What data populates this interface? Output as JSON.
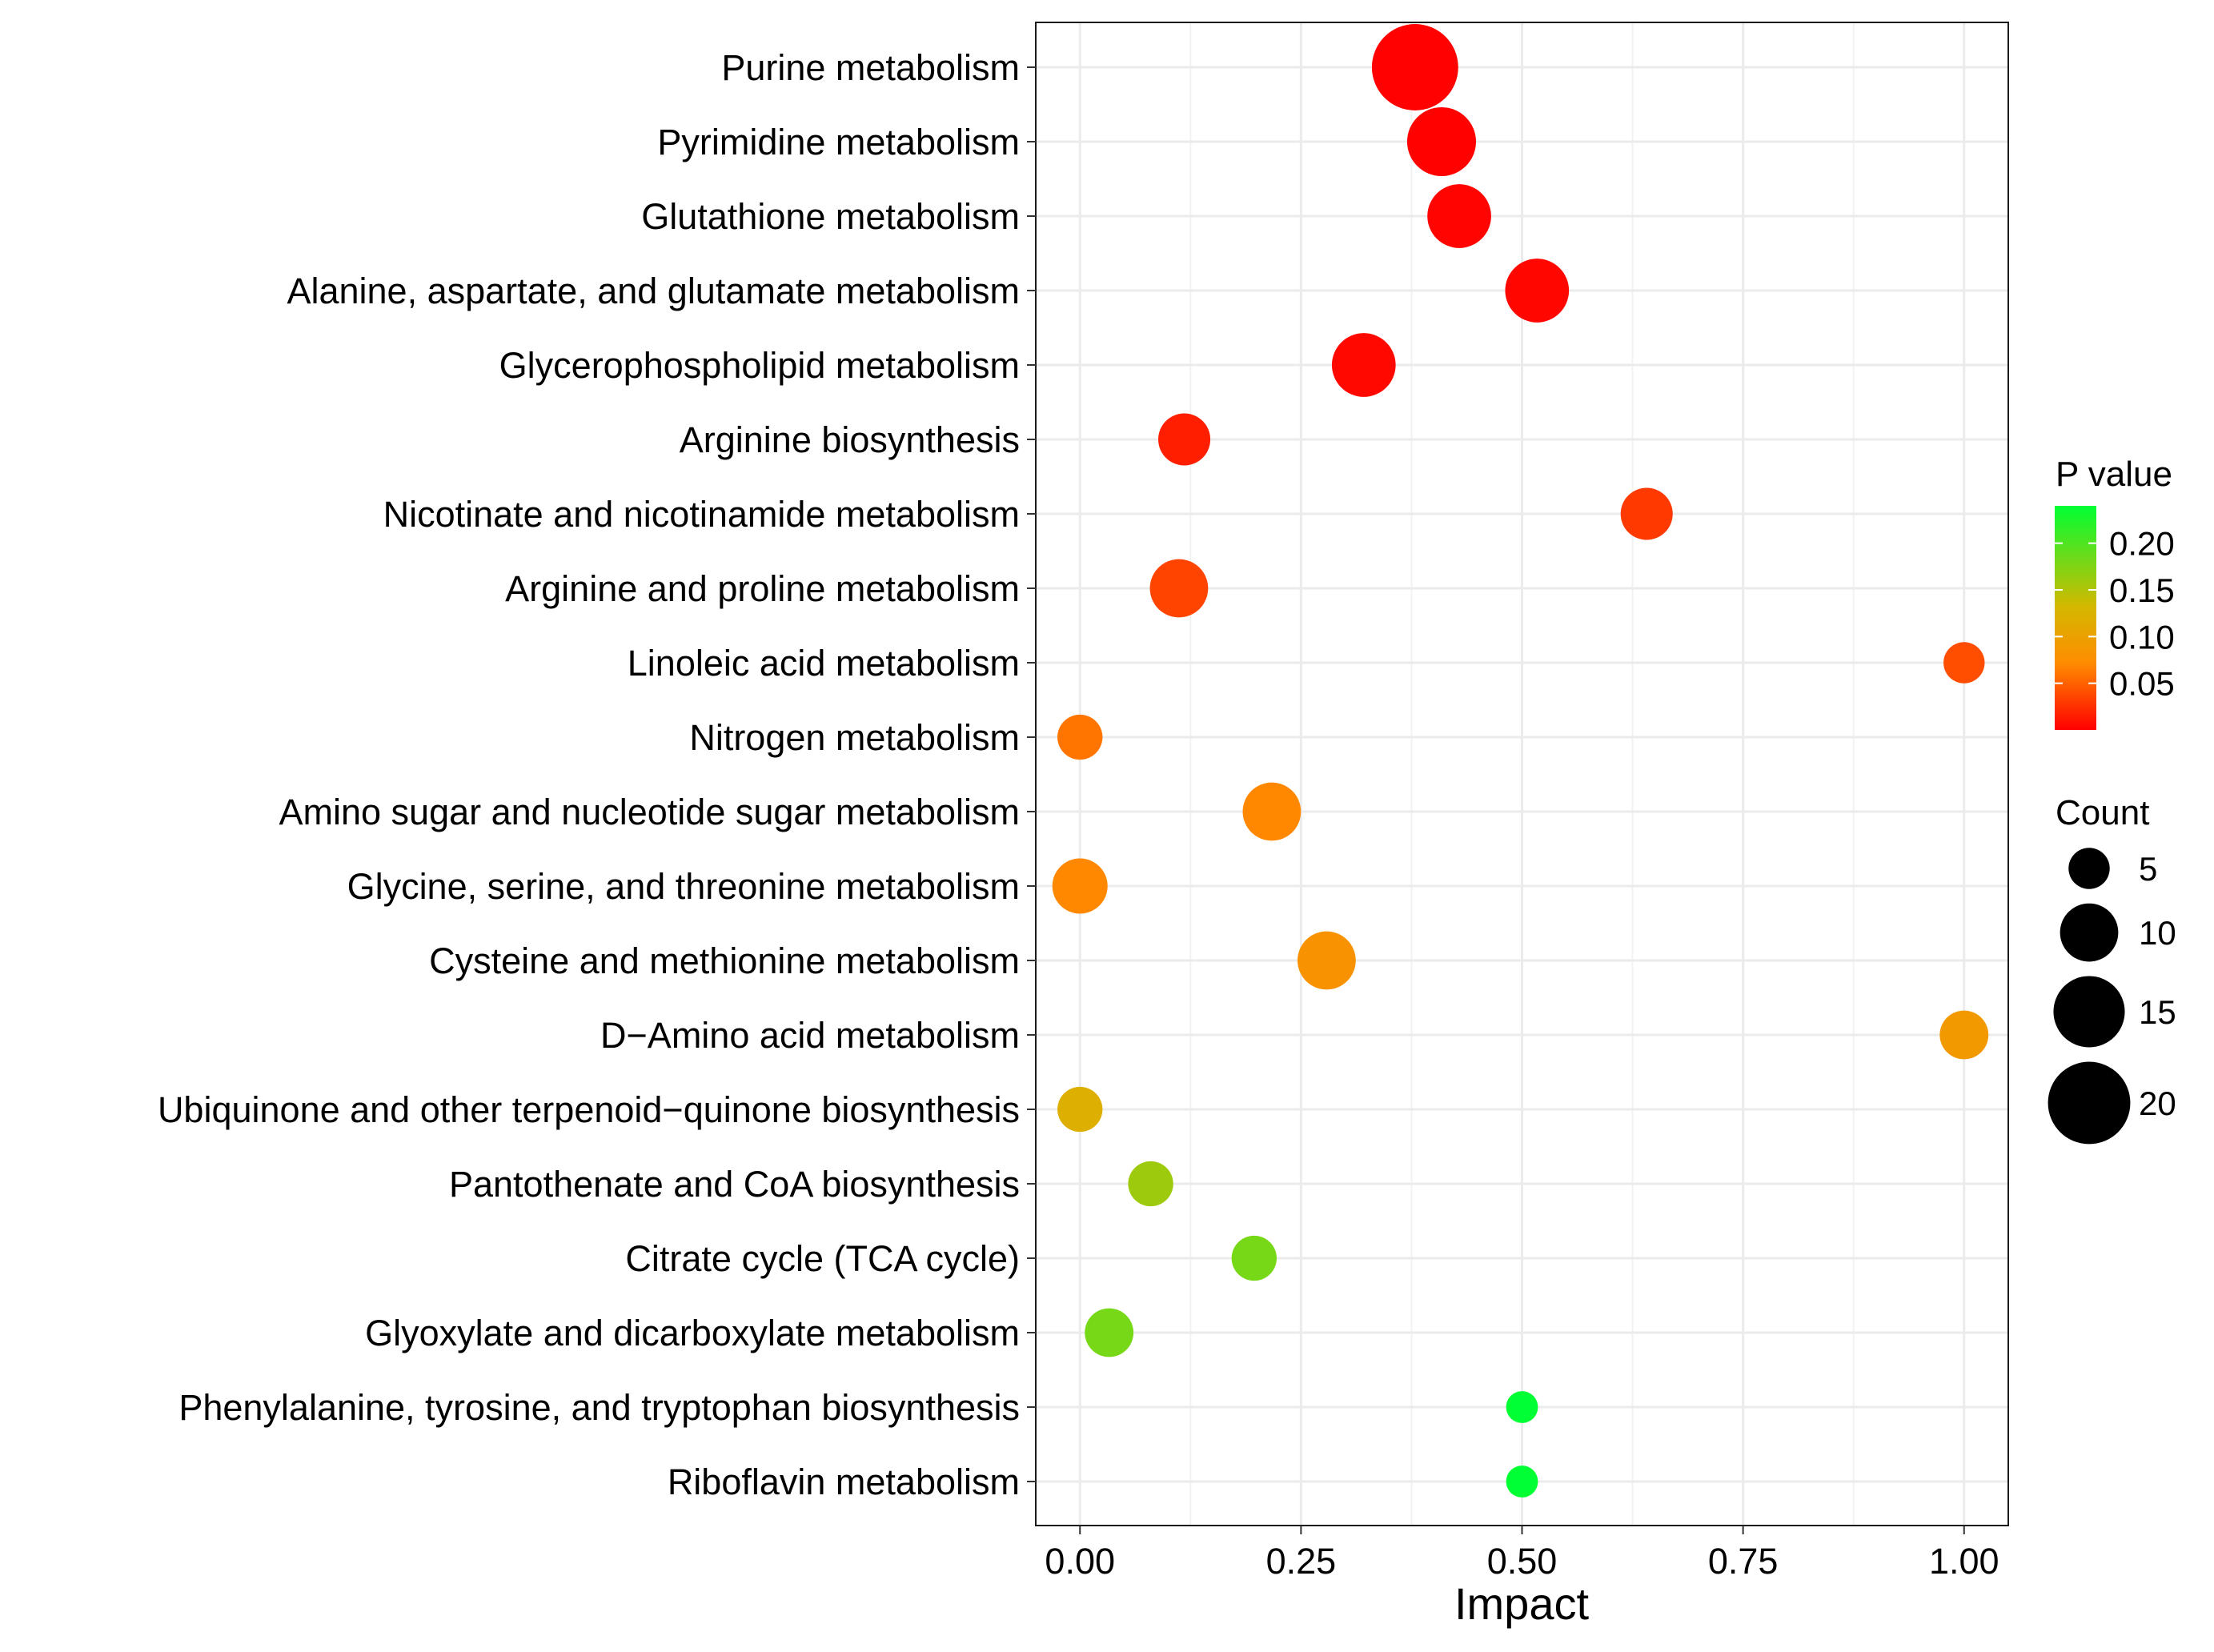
{
  "chart_data": {
    "type": "scatter",
    "title": "",
    "xlabel": "Impact",
    "ylabel": "",
    "xlim": [
      -0.05,
      1.05
    ],
    "x_ticks": [
      0.0,
      0.25,
      0.5,
      0.75,
      1.0
    ],
    "x_tick_labels": [
      "0.00",
      "0.25",
      "0.50",
      "0.75",
      "1.00"
    ],
    "grid": true,
    "categories": [
      "Purine metabolism",
      "Pyrimidine metabolism",
      "Glutathione metabolism",
      "Alanine, aspartate, and glutamate metabolism",
      "Glycerophospholipid metabolism",
      "Arginine biosynthesis",
      "Nicotinate and nicotinamide metabolism",
      "Arginine and proline metabolism",
      "Linoleic acid metabolism",
      "Nitrogen metabolism",
      "Amino sugar and nucleotide sugar metabolism",
      "Glycine, serine, and threonine metabolism",
      "Cysteine and methionine metabolism",
      "D−Amino acid metabolism",
      "Ubiquinone and other terpenoid−quinone biosynthesis",
      "Pantothenate and CoA biosynthesis",
      "Citrate cycle (TCA cycle)",
      "Glyoxylate and dicarboxylate metabolism",
      "Phenylalanine, tyrosine, and tryptophan biosynthesis",
      "Riboflavin metabolism"
    ],
    "impact": [
      0.379,
      0.409,
      0.429,
      0.517,
      0.321,
      0.118,
      0.641,
      0.112,
      1.0,
      0.0,
      0.217,
      0.0,
      0.279,
      1.0,
      0.0,
      0.08,
      0.197,
      0.033,
      0.5,
      0.5
    ],
    "count": [
      22,
      14,
      12,
      12,
      12,
      8,
      8,
      10,
      5,
      6,
      10,
      9,
      10,
      7,
      6,
      6,
      6,
      7,
      3,
      3
    ],
    "p_value": [
      0.0005,
      0.001,
      0.002,
      0.003,
      0.004,
      0.016,
      0.03,
      0.035,
      0.04,
      0.06,
      0.07,
      0.07,
      0.08,
      0.09,
      0.12,
      0.16,
      0.18,
      0.18,
      0.24,
      0.24
    ],
    "color_legend": {
      "title": "P value",
      "ticks": [
        0.05,
        0.1,
        0.15,
        0.2
      ],
      "tick_labels": [
        "0.05",
        "0.10",
        "0.15",
        "0.20"
      ],
      "range": [
        0.0,
        0.24
      ],
      "low_color": "#ff0000",
      "mid_color": "#ff8c00",
      "mid2_color": "#d4b800",
      "high_color": "#00ff33",
      "position": "right"
    },
    "size_legend": {
      "title": "Count",
      "values": [
        5,
        10,
        15,
        20
      ],
      "labels": [
        "5",
        "10",
        "15",
        "20"
      ],
      "position": "right"
    }
  }
}
